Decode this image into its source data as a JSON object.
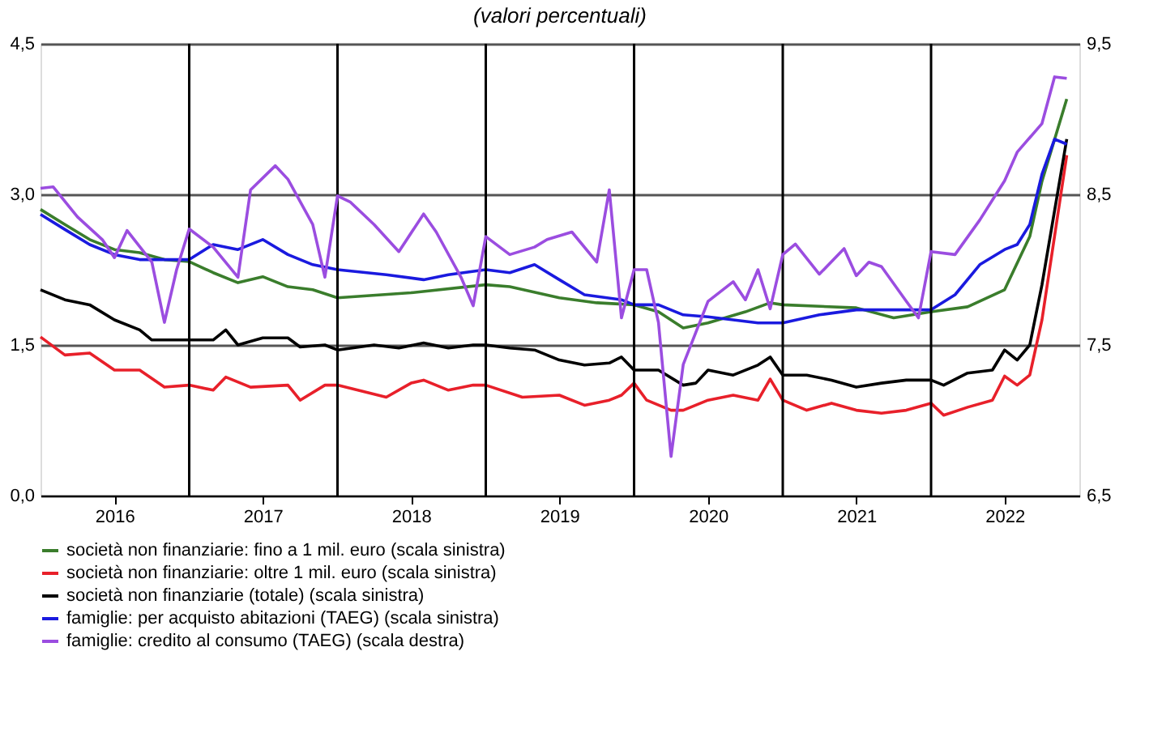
{
  "chart_data": {
    "type": "line",
    "title": "(valori percentuali)",
    "xlim": [
      "2016-01",
      "2023-01"
    ],
    "xticks": [
      {
        "value": "2016-07",
        "label": "2016"
      },
      {
        "value": "2017-07",
        "label": "2017"
      },
      {
        "value": "2018-07",
        "label": "2018"
      },
      {
        "value": "2019-07",
        "label": "2019"
      },
      {
        "value": "2020-07",
        "label": "2020"
      },
      {
        "value": "2021-07",
        "label": "2021"
      },
      {
        "value": "2022-07",
        "label": "2022"
      }
    ],
    "ylim": [
      0,
      4.5
    ],
    "yticks": [
      {
        "value": 0,
        "label": "0,0"
      },
      {
        "value": 1.5,
        "label": "1,5"
      },
      {
        "value": 3,
        "label": "3,0"
      },
      {
        "value": 4.5,
        "label": "4,5"
      }
    ],
    "y2lim": [
      6.5,
      9.5
    ],
    "y2ticks": [
      {
        "value": 6.5,
        "label": "6,5"
      },
      {
        "value": 7.5,
        "label": "7,5"
      },
      {
        "value": 8.5,
        "label": "8,5"
      },
      {
        "value": 9.5,
        "label": "9,5"
      }
    ],
    "grid": "y",
    "legend": "bottom",
    "line_style": "solid",
    "marker": "none",
    "ref_lines": [
      {
        "axis": "x",
        "value": "2017-01",
        "color": "#000000"
      },
      {
        "axis": "x",
        "value": "2018-01",
        "color": "#000000"
      },
      {
        "axis": "x",
        "value": "2019-01",
        "color": "#000000"
      },
      {
        "axis": "x",
        "value": "2020-01",
        "color": "#000000"
      },
      {
        "axis": "x",
        "value": "2021-01",
        "color": "#000000"
      },
      {
        "axis": "x",
        "value": "2022-01",
        "color": "#000000"
      }
    ],
    "series": [
      {
        "name": "società non finanziarie: fino a 1 mil. euro (scala sinistra)",
        "color": "#3a7d2c",
        "x": [
          "2016-01",
          "2016-03",
          "2016-05",
          "2016-07",
          "2016-09",
          "2016-11",
          "2017-01",
          "2017-03",
          "2017-05",
          "2017-07",
          "2017-09",
          "2017-11",
          "2018-01",
          "2018-07",
          "2019-01",
          "2019-03",
          "2019-07",
          "2019-10",
          "2020-01",
          "2020-03",
          "2020-05",
          "2020-07",
          "2020-10",
          "2020-12",
          "2021-01",
          "2021-07",
          "2021-10",
          "2022-01",
          "2022-04",
          "2022-07",
          "2022-09",
          "2022-10",
          "2022-12"
        ],
        "values": [
          2.85,
          2.7,
          2.55,
          2.45,
          2.42,
          2.35,
          2.33,
          2.22,
          2.12,
          2.18,
          2.08,
          2.05,
          1.97,
          2.02,
          2.1,
          2.08,
          1.97,
          1.92,
          1.9,
          1.83,
          1.67,
          1.72,
          1.83,
          1.92,
          1.9,
          1.87,
          1.77,
          1.83,
          1.88,
          2.05,
          2.58,
          3.13,
          3.95
        ]
      },
      {
        "name": "società non finanziarie: oltre 1 mil. euro (scala sinistra)",
        "color": "#e8202a",
        "x": [
          "2016-01",
          "2016-03",
          "2016-05",
          "2016-07",
          "2016-09",
          "2016-11",
          "2017-01",
          "2017-03",
          "2017-04",
          "2017-06",
          "2017-09",
          "2017-10",
          "2017-12",
          "2018-01",
          "2018-05",
          "2018-07",
          "2018-08",
          "2018-10",
          "2018-12",
          "2019-01",
          "2019-04",
          "2019-07",
          "2019-09",
          "2019-11",
          "2019-12",
          "2020-01",
          "2020-02",
          "2020-04",
          "2020-05",
          "2020-07",
          "2020-09",
          "2020-11",
          "2020-12",
          "2021-01",
          "2021-03",
          "2021-05",
          "2021-07",
          "2021-09",
          "2021-11",
          "2022-01",
          "2022-02",
          "2022-04",
          "2022-06",
          "2022-07",
          "2022-08",
          "2022-09",
          "2022-10",
          "2022-12"
        ],
        "values": [
          1.58,
          1.4,
          1.42,
          1.25,
          1.25,
          1.08,
          1.1,
          1.05,
          1.18,
          1.08,
          1.1,
          0.95,
          1.1,
          1.1,
          0.98,
          1.12,
          1.15,
          1.05,
          1.1,
          1.1,
          0.98,
          1.0,
          0.9,
          0.95,
          1.0,
          1.12,
          0.95,
          0.85,
          0.85,
          0.95,
          1.0,
          0.95,
          1.16,
          0.95,
          0.85,
          0.92,
          0.85,
          0.82,
          0.85,
          0.92,
          0.8,
          0.88,
          0.95,
          1.19,
          1.1,
          1.2,
          1.75,
          3.39
        ]
      },
      {
        "name": "società non finanziarie (totale) (scala sinistra)",
        "color": "#000000",
        "x": [
          "2016-01",
          "2016-03",
          "2016-05",
          "2016-07",
          "2016-09",
          "2016-10",
          "2016-12",
          "2017-01",
          "2017-03",
          "2017-04",
          "2017-05",
          "2017-07",
          "2017-09",
          "2017-10",
          "2017-12",
          "2018-01",
          "2018-04",
          "2018-06",
          "2018-08",
          "2018-10",
          "2018-12",
          "2019-01",
          "2019-03",
          "2019-05",
          "2019-07",
          "2019-09",
          "2019-11",
          "2019-12",
          "2020-01",
          "2020-03",
          "2020-05",
          "2020-06",
          "2020-07",
          "2020-09",
          "2020-11",
          "2020-12",
          "2021-01",
          "2021-03",
          "2021-05",
          "2021-07",
          "2021-09",
          "2021-11",
          "2022-01",
          "2022-02",
          "2022-04",
          "2022-06",
          "2022-07",
          "2022-08",
          "2022-09",
          "2022-10",
          "2022-12"
        ],
        "values": [
          2.05,
          1.95,
          1.9,
          1.75,
          1.65,
          1.55,
          1.55,
          1.55,
          1.55,
          1.65,
          1.5,
          1.57,
          1.57,
          1.48,
          1.5,
          1.45,
          1.5,
          1.47,
          1.52,
          1.47,
          1.5,
          1.5,
          1.47,
          1.45,
          1.35,
          1.3,
          1.32,
          1.38,
          1.25,
          1.25,
          1.1,
          1.12,
          1.25,
          1.2,
          1.3,
          1.38,
          1.2,
          1.2,
          1.15,
          1.08,
          1.12,
          1.15,
          1.15,
          1.1,
          1.22,
          1.25,
          1.45,
          1.35,
          1.5,
          2.1,
          3.55
        ]
      },
      {
        "name": "famiglie: per acquisto abitazioni (TAEG) (scala sinistra)",
        "color": "#1a1adf",
        "x": [
          "2016-01",
          "2016-03",
          "2016-05",
          "2016-07",
          "2016-09",
          "2016-11",
          "2017-01",
          "2017-03",
          "2017-05",
          "2017-07",
          "2017-09",
          "2017-11",
          "2018-01",
          "2018-05",
          "2018-08",
          "2018-10",
          "2019-01",
          "2019-03",
          "2019-05",
          "2019-07",
          "2019-09",
          "2019-12",
          "2020-01",
          "2020-03",
          "2020-05",
          "2020-07",
          "2020-09",
          "2020-11",
          "2020-12",
          "2021-01",
          "2021-04",
          "2021-07",
          "2021-10",
          "2022-01",
          "2022-03",
          "2022-05",
          "2022-07",
          "2022-08",
          "2022-09",
          "2022-10",
          "2022-11",
          "2022-12"
        ],
        "values": [
          2.8,
          2.65,
          2.5,
          2.4,
          2.35,
          2.35,
          2.35,
          2.5,
          2.45,
          2.55,
          2.4,
          2.3,
          2.25,
          2.2,
          2.15,
          2.2,
          2.25,
          2.22,
          2.3,
          2.15,
          2.0,
          1.95,
          1.9,
          1.9,
          1.8,
          1.78,
          1.75,
          1.72,
          1.72,
          1.72,
          1.8,
          1.85,
          1.85,
          1.85,
          2.0,
          2.3,
          2.45,
          2.5,
          2.7,
          3.2,
          3.55,
          3.5
        ]
      },
      {
        "name": "famiglie: credito al consumo (TAEG) (scala destra)",
        "color": "#9b4de0",
        "axis": "y2",
        "x": [
          "2016-01",
          "2016-02",
          "2016-04",
          "2016-06",
          "2016-07",
          "2016-08",
          "2016-10",
          "2016-11",
          "2016-12",
          "2017-01",
          "2017-03",
          "2017-05",
          "2017-06",
          "2017-08",
          "2017-09",
          "2017-11",
          "2017-12",
          "2018-01",
          "2018-02",
          "2018-04",
          "2018-06",
          "2018-08",
          "2018-09",
          "2018-11",
          "2018-12",
          "2019-01",
          "2019-03",
          "2019-05",
          "2019-06",
          "2019-08",
          "2019-10",
          "2019-11",
          "2019-12",
          "2020-01",
          "2020-02",
          "2020-03",
          "2020-04",
          "2020-05",
          "2020-07",
          "2020-09",
          "2020-10",
          "2020-11",
          "2020-12",
          "2021-01",
          "2021-02",
          "2021-04",
          "2021-06",
          "2021-07",
          "2021-08",
          "2021-09",
          "2021-11",
          "2021-12",
          "2022-01",
          "2022-03",
          "2022-05",
          "2022-07",
          "2022-08",
          "2022-10",
          "2022-11",
          "2022-12"
        ],
        "values": [
          8.54,
          8.55,
          8.35,
          8.2,
          8.08,
          8.26,
          8.05,
          7.65,
          8.0,
          8.27,
          8.15,
          7.95,
          8.53,
          8.69,
          8.6,
          8.3,
          7.95,
          8.49,
          8.45,
          8.3,
          8.12,
          8.37,
          8.25,
          7.95,
          7.76,
          8.22,
          8.1,
          8.15,
          8.2,
          8.25,
          8.05,
          8.53,
          7.68,
          8.0,
          8.0,
          7.65,
          6.76,
          7.37,
          7.79,
          7.92,
          7.8,
          8.0,
          7.74,
          8.1,
          8.17,
          7.97,
          8.14,
          7.96,
          8.05,
          8.02,
          7.79,
          7.68,
          8.12,
          8.1,
          8.33,
          8.59,
          8.78,
          8.97,
          9.28,
          9.27
        ]
      }
    ]
  }
}
